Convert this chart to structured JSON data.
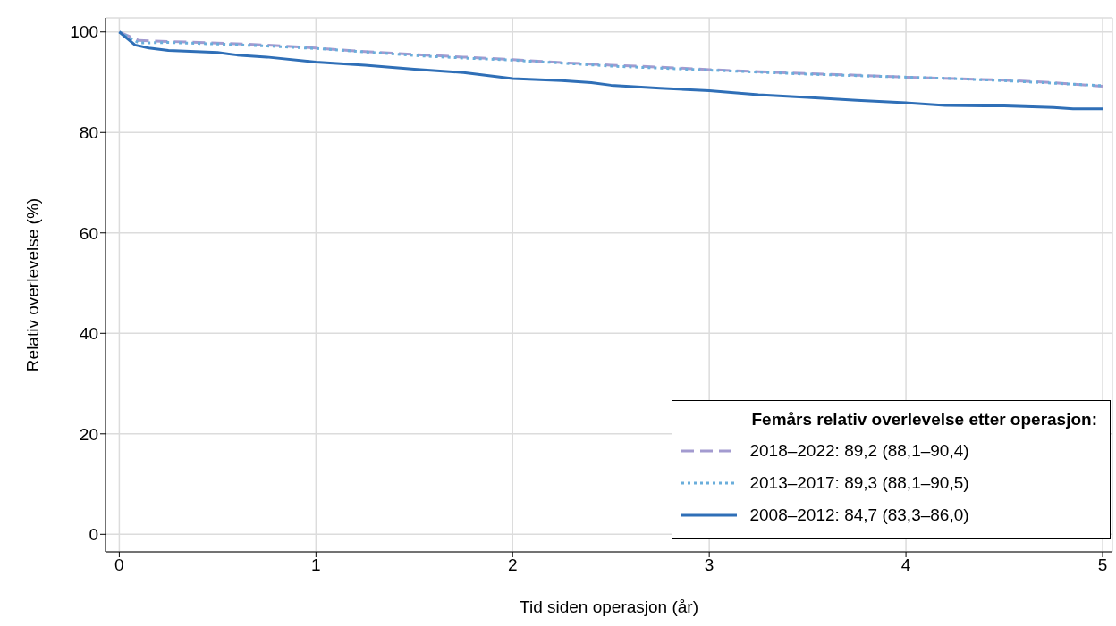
{
  "chart_data": {
    "type": "line",
    "xlabel": "Tid siden operasjon (år)",
    "ylabel": "Relativ overlevelse (%)",
    "legend_title": "Femårs relativ overlevelse etter operasjon:",
    "xlim": [
      -0.07,
      5.05
    ],
    "ylim": [
      -3.5,
      102.8
    ],
    "xticks": [
      0,
      1,
      2,
      3,
      4,
      5
    ],
    "yticks": [
      0,
      20,
      40,
      60,
      80,
      100
    ],
    "grid": true,
    "legend": "bottom right",
    "series": [
      {
        "name": "2018–2022: 89,2 (88,1–90,4)",
        "color": "#a39bd0",
        "line_style": "dashed",
        "x": [
          0,
          0.1,
          0.25,
          0.5,
          0.75,
          1,
          1.25,
          1.5,
          1.75,
          2,
          2.25,
          2.5,
          2.75,
          3,
          3.25,
          3.5,
          3.75,
          4,
          4.25,
          4.5,
          4.75,
          5
        ],
        "values": [
          100,
          98.3,
          98.1,
          97.8,
          97.4,
          96.8,
          96.1,
          95.5,
          95,
          94.5,
          93.9,
          93.4,
          93,
          92.5,
          92.1,
          91.7,
          91.4,
          91,
          90.7,
          90.4,
          89.9,
          89.2
        ]
      },
      {
        "name": "2013–2017: 89,3 (88,1–90,5)",
        "color": "#6aaedb",
        "line_style": "dotted",
        "x": [
          0,
          0.1,
          0.25,
          0.5,
          0.75,
          1,
          1.25,
          1.5,
          1.75,
          2,
          2.25,
          2.5,
          2.75,
          3,
          3.25,
          3.5,
          3.75,
          4,
          4.25,
          4.5,
          4.75,
          5
        ],
        "values": [
          100,
          97.8,
          97.9,
          97.6,
          97.2,
          96.7,
          96,
          95.3,
          94.8,
          94.4,
          93.8,
          93.2,
          92.8,
          92.4,
          92,
          91.6,
          91.3,
          91,
          90.7,
          90.3,
          89.8,
          89.3
        ]
      },
      {
        "name": "2008–2012: 84,7 (83,3–86,0)",
        "color": "#2f6fb7",
        "line_style": "solid",
        "x": [
          0,
          0.08,
          0.15,
          0.25,
          0.5,
          0.6,
          0.75,
          1,
          1.25,
          1.5,
          1.75,
          2,
          2.25,
          2.4,
          2.5,
          2.75,
          3,
          3.25,
          3.5,
          3.75,
          4,
          4.2,
          4.4,
          4.5,
          4.75,
          4.85,
          5
        ],
        "values": [
          100,
          97.4,
          96.8,
          96.3,
          95.9,
          95.4,
          95,
          94,
          93.4,
          92.6,
          91.9,
          90.7,
          90.3,
          89.9,
          89.4,
          88.8,
          88.3,
          87.5,
          87,
          86.4,
          85.9,
          85.4,
          85.3,
          85.3,
          85,
          84.7,
          84.7
        ]
      }
    ]
  }
}
